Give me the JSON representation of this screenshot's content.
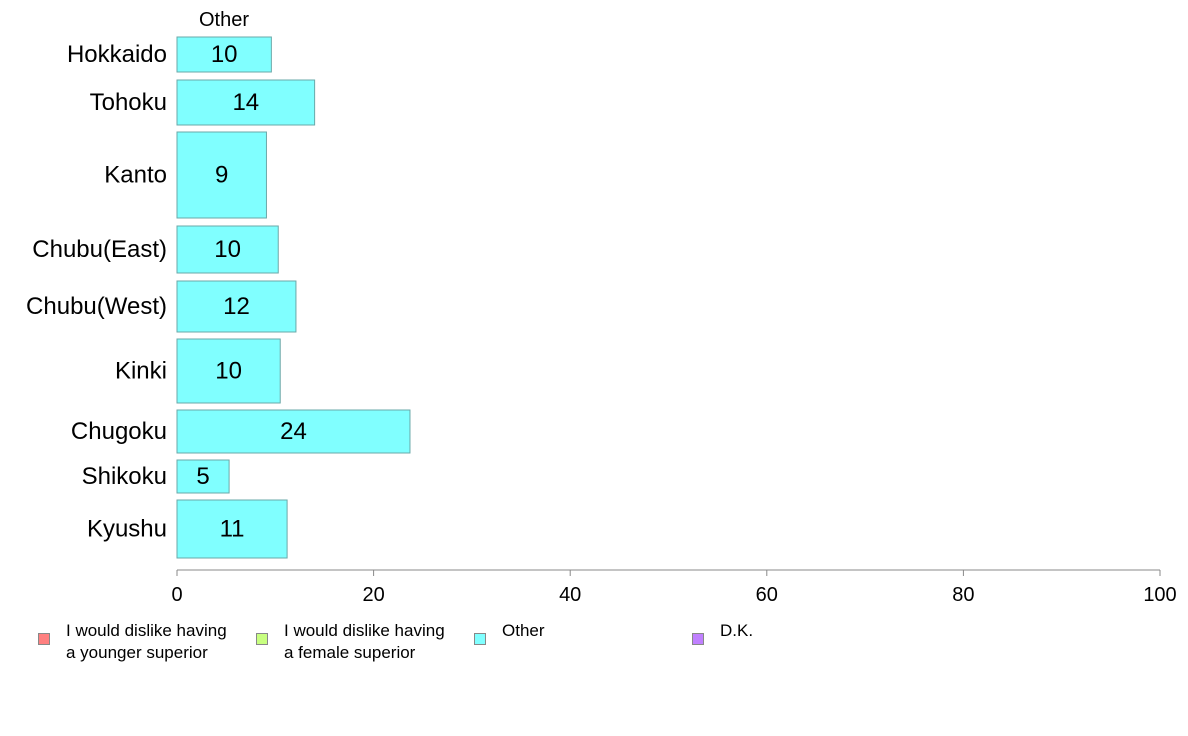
{
  "chart_data": {
    "type": "bar",
    "orientation": "horizontal",
    "series_title": "Other",
    "categories": [
      "Hokkaido",
      "Tohoku",
      "Kanto",
      "Chubu(East)",
      "Chubu(West)",
      "Kinki",
      "Chugoku",
      "Shikoku",
      "Kyushu"
    ],
    "series": [
      {
        "name": "Other",
        "color": "#80ffff",
        "values": [
          9.6,
          14.0,
          9.1,
          10.3,
          12.1,
          10.5,
          23.7,
          5.3,
          11.2
        ],
        "labels": [
          "10",
          "14",
          "9",
          "10",
          "12",
          "10",
          "24",
          "5",
          "11"
        ]
      }
    ],
    "xlim": [
      0,
      100
    ],
    "xticks": [
      "0",
      "20",
      "40",
      "60",
      "80",
      "100"
    ],
    "grid": false,
    "legend": {
      "position": "bottom",
      "items": [
        {
          "label": "I would dislike having\na younger superior",
          "color": "#ff8080"
        },
        {
          "label": "I would dislike having\na female superior",
          "color": "#c8ff80"
        },
        {
          "label": "Other",
          "color": "#80ffff"
        },
        {
          "label": "D.K.",
          "color": "#c080ff"
        }
      ]
    }
  }
}
